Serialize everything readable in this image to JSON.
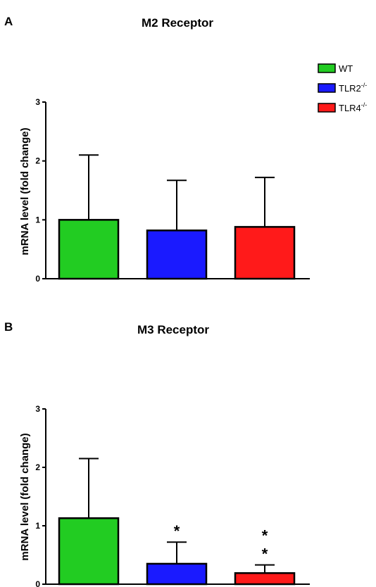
{
  "legend": {
    "items": [
      {
        "label": "WT",
        "sup": "",
        "color": "#22cc22"
      },
      {
        "label": "TLR2",
        "sup": "-/-",
        "color": "#1a1aff"
      },
      {
        "label": "TLR4",
        "sup": "-/-",
        "color": "#ff1a1a"
      }
    ]
  },
  "chart_data": [
    {
      "type": "bar",
      "panel": "A",
      "title": "M2 Receptor",
      "ylabel": "mRNA level (fold change)",
      "xlabel": "",
      "ylim": [
        0,
        3
      ],
      "yticks": [
        "0",
        "1",
        "2",
        "3"
      ],
      "categories": [
        "WT",
        "TLR2-/-",
        "TLR4-/-"
      ],
      "values": [
        1.0,
        0.82,
        0.88
      ],
      "error_upper": [
        2.1,
        1.67,
        1.72
      ],
      "colors": [
        "#22cc22",
        "#1a1aff",
        "#ff1a1a"
      ],
      "annotations": [
        "",
        "",
        ""
      ]
    },
    {
      "type": "bar",
      "panel": "B",
      "title": "M3 Receptor",
      "ylabel": "mRNA level (fold change)",
      "xlabel": "",
      "ylim": [
        0,
        3
      ],
      "yticks": [
        "0",
        "1",
        "2",
        "3"
      ],
      "categories": [
        "WT",
        "TLR2-/-",
        "TLR4-/-"
      ],
      "values": [
        1.13,
        0.35,
        0.19
      ],
      "error_upper": [
        2.15,
        0.72,
        0.33
      ],
      "colors": [
        "#22cc22",
        "#1a1aff",
        "#ff1a1a"
      ],
      "annotations": [
        "",
        "*",
        "* *"
      ]
    }
  ]
}
